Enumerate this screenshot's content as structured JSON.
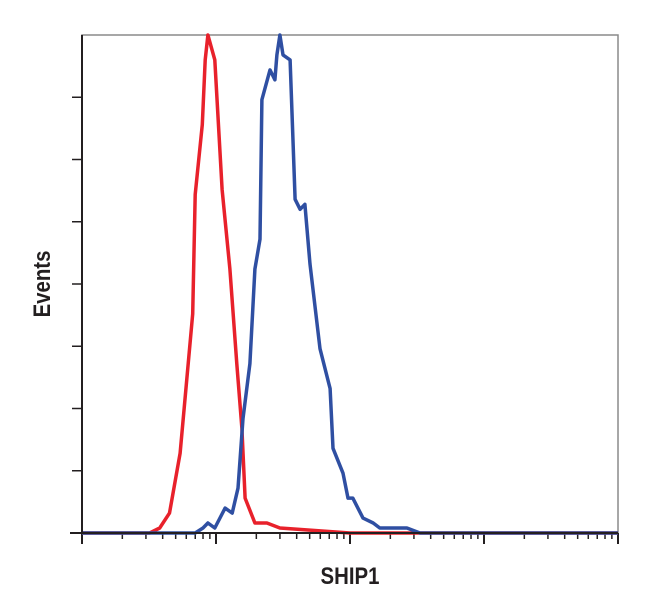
{
  "chart_data": {
    "type": "line",
    "title": "",
    "xlabel": "SHIP1",
    "ylabel": "Events",
    "x_scale": "log",
    "xlim": [
      1,
      10000
    ],
    "ylim": [
      0,
      100
    ],
    "y_tick_count": 8,
    "grid": false,
    "legend": "none",
    "series": [
      {
        "color": "#e8212b",
        "x": [
          1,
          3.2,
          3.8,
          4.5,
          5.4,
          6.7,
          7.0,
          7.9,
          8.3,
          8.7,
          9.8,
          11.1,
          12.7,
          14.3,
          15.6,
          16.5,
          19.5,
          24.0,
          30.0,
          100,
          10000
        ],
        "y": [
          0,
          0,
          1,
          4,
          16,
          44,
          68,
          82,
          95,
          100,
          95,
          69,
          53,
          34,
          21,
          7,
          2,
          2,
          1,
          0,
          0
        ]
      },
      {
        "color": "#2f4fa2",
        "x": [
          1,
          7.0,
          8.0,
          8.7,
          9.8,
          11.7,
          13.2,
          14.6,
          15.9,
          17.9,
          19.5,
          21.3,
          22.0,
          25.3,
          27.5,
          28.5,
          30.0,
          31.6,
          35.7,
          38.9,
          42.4,
          46.1,
          50.3,
          59.7,
          71.0,
          74.7,
          88.7,
          96.6,
          105,
          125,
          149,
          167,
          209,
          266,
          333,
          10000
        ],
        "y": [
          0,
          0,
          1,
          2,
          1,
          5,
          4,
          9,
          23,
          34,
          53,
          59,
          87,
          93,
          91,
          96,
          100,
          96,
          95,
          67,
          65,
          66,
          54,
          37,
          29,
          17,
          12,
          7,
          7,
          3,
          2,
          1,
          1,
          1,
          0,
          0
        ]
      }
    ]
  }
}
